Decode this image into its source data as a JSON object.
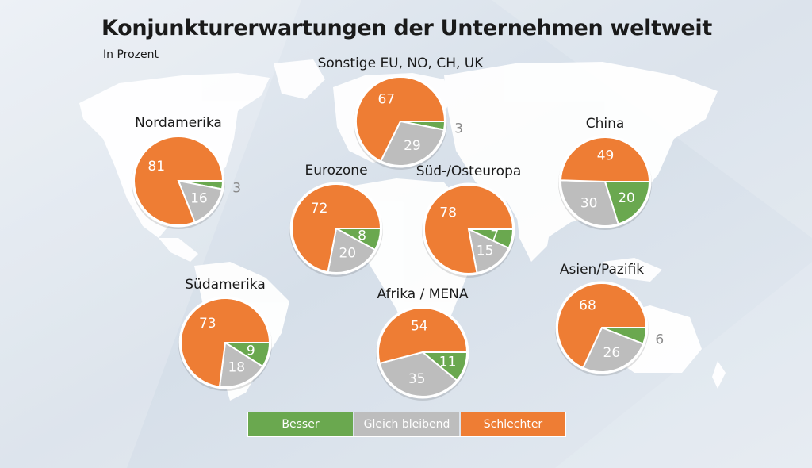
{
  "title": "Konjunkturerwartungen der Unternehmen weltweit",
  "subtitle": "In Prozent",
  "colors": {
    "besser": "#6aa84f",
    "gleich": "#bdbdbd",
    "schlechter": "#ee7d34"
  },
  "legend": [
    {
      "label": "Besser",
      "color": "#6aa84f"
    },
    {
      "label": "Gleich bleibend",
      "color": "#bdbdbd"
    },
    {
      "label": "Schlechter",
      "color": "#ee7d34"
    }
  ],
  "chart_data": [
    {
      "type": "pie",
      "title": "Nordamerika",
      "categories": [
        "Schlechter",
        "Gleich bleibend",
        "Besser"
      ],
      "values": [
        81,
        16,
        3
      ]
    },
    {
      "type": "pie",
      "title": "Sonstige EU, NO, CH, UK",
      "categories": [
        "Schlechter",
        "Gleich bleibend",
        "Besser"
      ],
      "values": [
        67,
        29,
        3
      ]
    },
    {
      "type": "pie",
      "title": "China",
      "categories": [
        "Schlechter",
        "Gleich bleibend",
        "Besser"
      ],
      "values": [
        49,
        30,
        20
      ]
    },
    {
      "type": "pie",
      "title": "Eurozone",
      "categories": [
        "Schlechter",
        "Gleich bleibend",
        "Besser"
      ],
      "values": [
        72,
        20,
        8
      ]
    },
    {
      "type": "pie",
      "title": "Süd-/Osteuropa",
      "categories": [
        "Schlechter",
        "Gleich bleibend",
        "Besser"
      ],
      "values": [
        78,
        15,
        7
      ]
    },
    {
      "type": "pie",
      "title": "Südamerika",
      "categories": [
        "Schlechter",
        "Gleich bleibend",
        "Besser"
      ],
      "values": [
        73,
        18,
        9
      ]
    },
    {
      "type": "pie",
      "title": "Afrika / MENA",
      "categories": [
        "Schlechter",
        "Gleich bleibend",
        "Besser"
      ],
      "values": [
        54,
        35,
        11
      ]
    },
    {
      "type": "pie",
      "title": "Asien/Pazifik",
      "categories": [
        "Schlechter",
        "Gleich bleibend",
        "Besser"
      ],
      "values": [
        68,
        26,
        6
      ]
    }
  ]
}
